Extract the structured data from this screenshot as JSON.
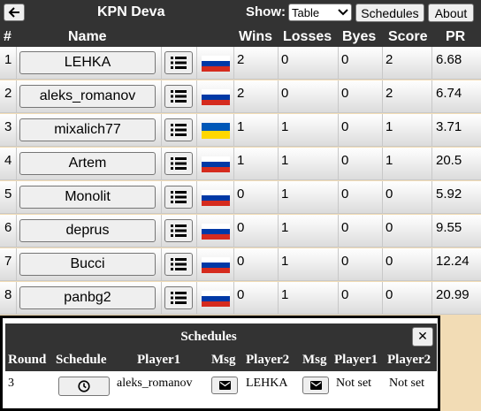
{
  "header": {
    "title": "KPN Deva",
    "show_label": "Show:",
    "show_value": "Table",
    "schedules_btn": "Schedules",
    "about_btn": "About"
  },
  "columns": {
    "num": "#",
    "name": "Name",
    "wins": "Wins",
    "losses": "Losses",
    "byes": "Byes",
    "score": "Score",
    "pr": "PR"
  },
  "players": [
    {
      "rank": "1",
      "name": "LEHKA",
      "flag": "ru",
      "wins": "2",
      "losses": "0",
      "byes": "0",
      "score": "2",
      "pr": "6.68"
    },
    {
      "rank": "2",
      "name": "aleks_romanov",
      "flag": "ru",
      "wins": "2",
      "losses": "0",
      "byes": "0",
      "score": "2",
      "pr": "6.74"
    },
    {
      "rank": "3",
      "name": "mixalich77",
      "flag": "ua",
      "wins": "1",
      "losses": "1",
      "byes": "0",
      "score": "1",
      "pr": "3.71"
    },
    {
      "rank": "4",
      "name": "Artem",
      "flag": "ru",
      "wins": "1",
      "losses": "1",
      "byes": "0",
      "score": "1",
      "pr": "20.5"
    },
    {
      "rank": "5",
      "name": "Monolit",
      "flag": "ru",
      "wins": "0",
      "losses": "1",
      "byes": "0",
      "score": "0",
      "pr": "5.92"
    },
    {
      "rank": "6",
      "name": "deprus",
      "flag": "ru",
      "wins": "0",
      "losses": "1",
      "byes": "0",
      "score": "0",
      "pr": "9.55"
    },
    {
      "rank": "7",
      "name": "Bucci",
      "flag": "ru",
      "wins": "0",
      "losses": "1",
      "byes": "0",
      "score": "0",
      "pr": "12.24"
    },
    {
      "rank": "8",
      "name": "panbg2",
      "flag": "ru",
      "wins": "0",
      "losses": "1",
      "byes": "0",
      "score": "0",
      "pr": "20.99"
    }
  ],
  "flags": {
    "ru": [
      "#ffffff",
      "#0039a6",
      "#d52b1e"
    ],
    "ua": [
      "#0057b7",
      "#ffd700"
    ]
  },
  "schedules": {
    "title": "Schedules",
    "close": "✕",
    "columns": [
      "Round",
      "Schedule",
      "Player1",
      "Msg",
      "Player2",
      "Msg",
      "Player1",
      "Player2"
    ],
    "row": {
      "round": "3",
      "player1": "aleks_romanov",
      "player2": "LEHKA",
      "p1_status": "Not set",
      "p2_status": "Not set"
    }
  },
  "colors": {
    "header_bg": "#333333",
    "page_bg": "#f2dcb5"
  }
}
